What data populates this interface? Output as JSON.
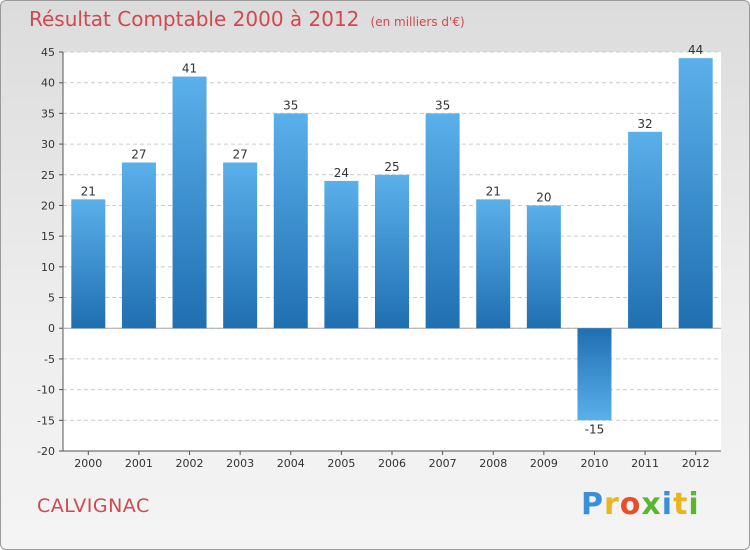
{
  "header": {
    "title": "Résultat Comptable 2000 à 2012",
    "subtitle": "(en milliers d'€)"
  },
  "commune": "CALVIGNAC",
  "logo": {
    "letters": [
      "P",
      "r",
      "o",
      "x",
      "i",
      "t",
      "i"
    ],
    "colors": [
      "#3a8fd8",
      "#e8b61e",
      "#e84e2c",
      "#5cb531",
      "#3a8fd8",
      "#e8b61e",
      "#5cb531"
    ]
  },
  "colors": {
    "title": "#d2484f",
    "bar_light": "#5ab0ea",
    "bar_dark": "#1f6fb1"
  },
  "chart_data": {
    "type": "bar",
    "title": "Résultat Comptable 2000 à 2012",
    "subtitle": "(en milliers d'€)",
    "xlabel": "",
    "ylabel": "",
    "categories": [
      "2000",
      "2001",
      "2002",
      "2003",
      "2004",
      "2005",
      "2006",
      "2007",
      "2008",
      "2009",
      "2010",
      "2011",
      "2012"
    ],
    "values": [
      21,
      27,
      41,
      27,
      35,
      24,
      25,
      35,
      21,
      20,
      -15,
      32,
      44
    ],
    "ylim": [
      -20,
      45
    ],
    "yticks": [
      -20,
      -15,
      -10,
      -5,
      0,
      5,
      10,
      15,
      20,
      25,
      30,
      35,
      40,
      45
    ],
    "grid": true
  }
}
